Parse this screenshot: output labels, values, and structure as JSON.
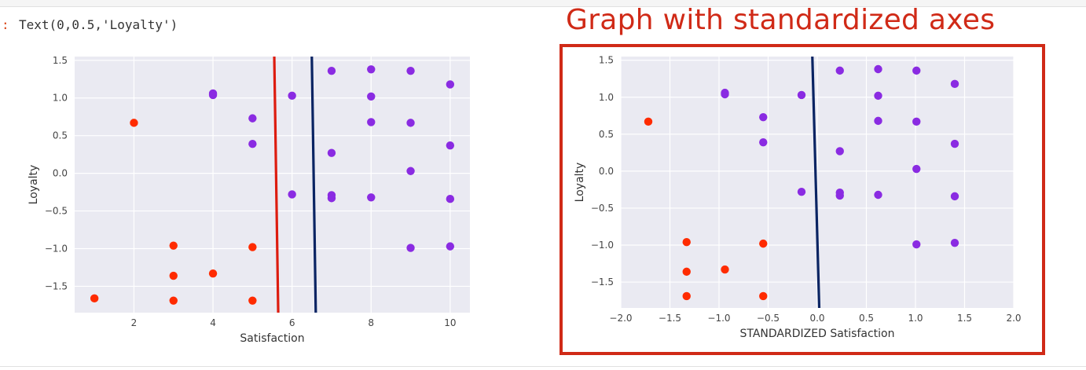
{
  "cell_output": {
    "prompt": ":",
    "text": "Text(0,0.5,'Loyalty')"
  },
  "headline": "Graph with standardized axes",
  "colors": {
    "background": "#eaeaf2",
    "grid": "#ffffff",
    "cluster_a": "#ff2b00",
    "cluster_b": "#8a2be2",
    "red_line": "#dd1c0f",
    "navy_line": "#0a2463",
    "frame": "#d02a17"
  },
  "chart_data": [
    {
      "type": "scatter",
      "title": "",
      "xlabel": "Satisfaction",
      "ylabel": "Loyalty",
      "xlim": [
        0.5,
        10.5
      ],
      "ylim": [
        -1.85,
        1.55
      ],
      "xticks": [
        2,
        4,
        6,
        8,
        10
      ],
      "yticks": [
        1.5,
        1.0,
        0.5,
        0.0,
        -0.5,
        -1.0,
        -1.5
      ],
      "xtick_labels": [
        "2",
        "4",
        "6",
        "8",
        "10"
      ],
      "ytick_labels": [
        "1.5",
        "1.0",
        "0.5",
        "0.0",
        "−0.5",
        "−1.0",
        "−1.5"
      ],
      "grid": true,
      "series": [
        {
          "x": [
            1,
            2,
            3,
            3,
            3,
            4,
            5,
            5
          ],
          "y": [
            -1.66,
            0.67,
            -0.96,
            -1.36,
            -1.69,
            -1.33,
            -0.98,
            -1.69
          ]
        },
        {
          "x": [
            4,
            4,
            5,
            5,
            6,
            6,
            7,
            7,
            7,
            7,
            8,
            8,
            8,
            8,
            9,
            9,
            9,
            9,
            10,
            10,
            10,
            10
          ],
          "y": [
            1.06,
            1.04,
            0.73,
            0.39,
            1.03,
            -0.28,
            1.36,
            0.27,
            -0.29,
            -0.33,
            1.38,
            1.02,
            0.68,
            -0.32,
            1.36,
            0.67,
            0.03,
            -0.99,
            1.18,
            0.37,
            -0.34,
            -0.97
          ]
        }
      ],
      "lines": [
        {
          "x": [
            5.55,
            5.65
          ],
          "y": [
            1.55,
            -1.85
          ]
        },
        {
          "x": [
            6.5,
            6.6
          ],
          "y": [
            1.55,
            -1.85
          ]
        }
      ]
    },
    {
      "type": "scatter",
      "title": "",
      "xlabel": "STANDARDIZED Satisfaction",
      "ylabel": "Loyalty",
      "xlim": [
        -2.0,
        2.0
      ],
      "ylim": [
        -1.85,
        1.55
      ],
      "xticks": [
        -2.0,
        -1.5,
        -1.0,
        -0.5,
        0.0,
        0.5,
        1.0,
        1.5,
        2.0
      ],
      "yticks": [
        1.5,
        1.0,
        0.5,
        0.0,
        -0.5,
        -1.0,
        -1.5
      ],
      "xtick_labels": [
        "−2.0",
        "−1.5",
        "−1.0",
        "−0.5",
        "0.0",
        "0.5",
        "1.0",
        "1.5",
        "2.0"
      ],
      "ytick_labels": [
        "1.5",
        "1.0",
        "0.5",
        "0.0",
        "−0.5",
        "−1.0",
        "−1.5"
      ],
      "grid": true,
      "series": [
        {
          "x": [
            -1.72,
            -1.33,
            -1.33,
            -1.33,
            -0.94,
            -0.55,
            -0.55
          ],
          "y": [
            0.67,
            -0.96,
            -1.36,
            -1.69,
            -1.33,
            -0.98,
            -1.69
          ]
        },
        {
          "x": [
            -0.94,
            -0.94,
            -0.55,
            -0.55,
            -0.16,
            -0.16,
            0.23,
            0.23,
            0.23,
            0.23,
            0.62,
            0.62,
            0.62,
            0.62,
            1.01,
            1.01,
            1.01,
            1.01,
            1.4,
            1.4,
            1.4,
            1.4
          ],
          "y": [
            1.06,
            1.04,
            0.73,
            0.39,
            1.03,
            -0.28,
            1.36,
            0.27,
            -0.29,
            -0.33,
            1.38,
            1.02,
            0.68,
            -0.32,
            1.36,
            0.67,
            0.03,
            -0.99,
            1.18,
            0.37,
            -0.34,
            -0.97
          ]
        }
      ],
      "lines": [
        {
          "x": [
            -0.05,
            0.02
          ],
          "y": [
            1.55,
            -1.85
          ]
        }
      ]
    }
  ]
}
